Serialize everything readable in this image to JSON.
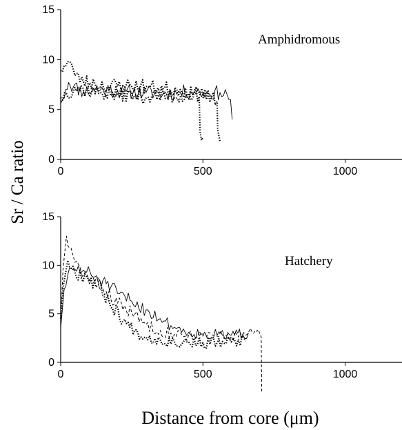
{
  "figure": {
    "ylabel": "Sr / Ca ratio",
    "xlabel": "Distance from core (μm)"
  },
  "chart_data": [
    {
      "type": "line",
      "annotation": "Amphidromous",
      "xlim": [
        0,
        1200
      ],
      "ylim": [
        0,
        15
      ],
      "x_ticks": [
        "0",
        "500",
        "1000"
      ],
      "y_ticks": [
        "0",
        "5",
        "10",
        "15"
      ],
      "grid": false,
      "series": [
        {
          "style": "solid",
          "seed": 11,
          "points": [
            [
              0,
              5.6
            ],
            [
              8,
              6.1
            ],
            [
              18,
              7.0
            ],
            [
              28,
              7.7
            ],
            [
              45,
              7.3
            ],
            [
              80,
              6.8
            ],
            [
              120,
              7.0
            ],
            [
              170,
              6.9
            ],
            [
              230,
              6.8
            ],
            [
              300,
              6.7
            ],
            [
              360,
              6.6
            ],
            [
              420,
              6.7
            ],
            [
              470,
              6.8
            ],
            [
              520,
              6.6
            ],
            [
              560,
              6.7
            ],
            [
              585,
              6.5
            ],
            [
              597,
              6.0
            ],
            [
              603,
              4.0
            ]
          ]
        },
        {
          "style": "dotted",
          "seed": 23,
          "points": [
            [
              0,
              8.9
            ],
            [
              12,
              9.4
            ],
            [
              25,
              9.8
            ],
            [
              38,
              9.6
            ],
            [
              50,
              8.4
            ],
            [
              80,
              7.8
            ],
            [
              120,
              7.6
            ],
            [
              170,
              7.4
            ],
            [
              230,
              7.4
            ],
            [
              300,
              7.3
            ],
            [
              360,
              7.1
            ],
            [
              420,
              7.0
            ],
            [
              470,
              6.6
            ],
            [
              487,
              6.3
            ],
            [
              490,
              2.8
            ],
            [
              500,
              2.2
            ]
          ]
        },
        {
          "style": "dotted",
          "seed": 37,
          "points": [
            [
              0,
              6.2
            ],
            [
              20,
              6.6
            ],
            [
              50,
              7.2
            ],
            [
              90,
              6.9
            ],
            [
              140,
              6.7
            ],
            [
              200,
              6.5
            ],
            [
              260,
              6.4
            ],
            [
              320,
              6.3
            ],
            [
              380,
              6.3
            ],
            [
              440,
              6.4
            ],
            [
              490,
              6.5
            ],
            [
              530,
              6.2
            ],
            [
              550,
              5.8
            ],
            [
              552,
              3.0
            ],
            [
              560,
              1.8
            ]
          ]
        }
      ]
    },
    {
      "type": "line",
      "annotation": "Hatchery",
      "xlim": [
        0,
        1200
      ],
      "ylim": [
        0,
        15
      ],
      "x_ticks": [
        "0",
        "500",
        "1000"
      ],
      "y_ticks": [
        "0",
        "5",
        "10",
        "15"
      ],
      "grid": false,
      "series": [
        {
          "style": "solid",
          "seed": 51,
          "points": [
            [
              0,
              3.5
            ],
            [
              12,
              7.5
            ],
            [
              25,
              9.0
            ],
            [
              50,
              9.6
            ],
            [
              80,
              9.5
            ],
            [
              120,
              8.8
            ],
            [
              160,
              8.1
            ],
            [
              200,
              7.1
            ],
            [
              250,
              6.3
            ],
            [
              300,
              5.4
            ],
            [
              350,
              4.5
            ],
            [
              400,
              3.6
            ],
            [
              450,
              3.1
            ],
            [
              500,
              2.9
            ],
            [
              550,
              2.8
            ],
            [
              600,
              2.8
            ],
            [
              640,
              2.9
            ],
            [
              660,
              3.0
            ]
          ]
        },
        {
          "style": "dotted",
          "seed": 67,
          "points": [
            [
              0,
              4.5
            ],
            [
              10,
              8.0
            ],
            [
              25,
              10.5
            ],
            [
              50,
              9.3
            ],
            [
              90,
              8.9
            ],
            [
              130,
              7.9
            ],
            [
              170,
              6.3
            ],
            [
              220,
              4.3
            ],
            [
              260,
              3.3
            ],
            [
              300,
              2.6
            ],
            [
              350,
              2.3
            ],
            [
              400,
              2.1
            ],
            [
              450,
              2.1
            ],
            [
              500,
              2.0
            ],
            [
              550,
              2.0
            ],
            [
              600,
              2.1
            ],
            [
              650,
              2.2
            ]
          ]
        },
        {
          "style": "dashed",
          "seed": 83,
          "points": [
            [
              0,
              4.0
            ],
            [
              8,
              9.5
            ],
            [
              20,
              13.0
            ],
            [
              30,
              11.8
            ],
            [
              50,
              10.3
            ],
            [
              80,
              9.1
            ],
            [
              120,
              8.3
            ],
            [
              160,
              7.3
            ],
            [
              200,
              6.1
            ],
            [
              250,
              5.1
            ],
            [
              300,
              3.9
            ],
            [
              350,
              3.3
            ],
            [
              400,
              2.9
            ],
            [
              450,
              2.8
            ],
            [
              500,
              2.7
            ],
            [
              550,
              2.7
            ],
            [
              600,
              2.7
            ],
            [
              650,
              2.8
            ],
            [
              690,
              3.2
            ],
            [
              705,
              2.6
            ],
            [
              707,
              -3.0
            ]
          ]
        }
      ]
    }
  ]
}
